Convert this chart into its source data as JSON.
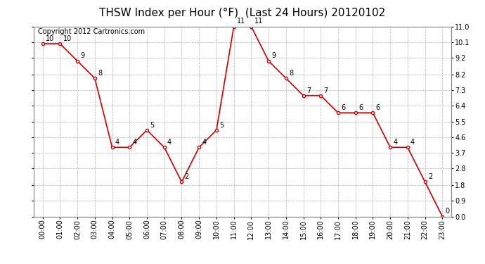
{
  "title": "THSW Index per Hour (°F)  (Last 24 Hours) 20120102",
  "copyright_text": "Copyright 2012 Cartronics.com",
  "hours": [
    "00:00",
    "01:00",
    "02:00",
    "03:00",
    "04:00",
    "05:00",
    "06:00",
    "07:00",
    "08:00",
    "09:00",
    "10:00",
    "11:00",
    "12:00",
    "13:00",
    "14:00",
    "15:00",
    "16:00",
    "17:00",
    "18:00",
    "19:00",
    "20:00",
    "21:00",
    "22:00",
    "23:00"
  ],
  "values": [
    10,
    10,
    9,
    8,
    4,
    4,
    5,
    4,
    2,
    4,
    5,
    11,
    11,
    9,
    8,
    7,
    7,
    6,
    6,
    6,
    4,
    4,
    2,
    0
  ],
  "line_color": "#cc0000",
  "marker_color": "#cc0000",
  "bg_color": "#ffffff",
  "plot_bg_color": "#ffffff",
  "grid_color": "#b0b0b0",
  "ylim_min": 0.0,
  "ylim_max": 11.0,
  "yticks": [
    0.0,
    0.9,
    1.8,
    2.8,
    3.7,
    4.6,
    5.5,
    6.4,
    7.3,
    8.2,
    9.2,
    10.1,
    11.0
  ],
  "title_fontsize": 11,
  "label_fontsize": 7,
  "tick_fontsize": 7,
  "copyright_fontsize": 7
}
